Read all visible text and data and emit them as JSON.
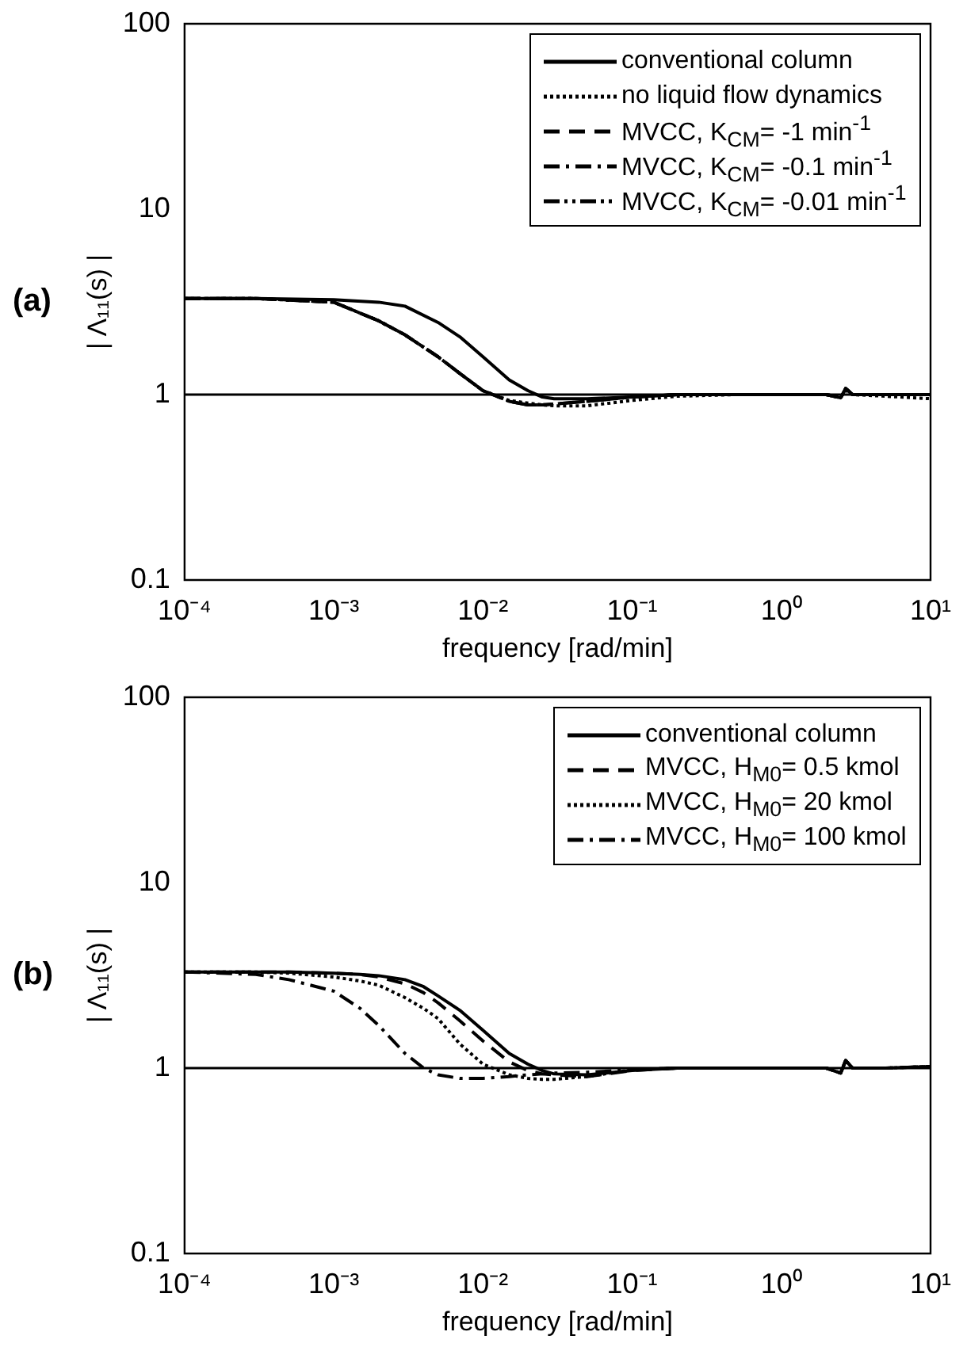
{
  "chart_data": [
    {
      "type": "line",
      "title": "(a)",
      "xlabel": "frequency [rad/min]",
      "ylabel": "| Λ₁₁(s) |",
      "log": "xy",
      "legend": "top right",
      "grid": false,
      "xlim": [
        0.0001,
        10
      ],
      "ylim": [
        0.1,
        100
      ],
      "xticks": [
        {
          "value": 0.0001,
          "label": "10⁻⁴"
        },
        {
          "value": 0.001,
          "label": "10⁻³"
        },
        {
          "value": 0.01,
          "label": "10⁻²"
        },
        {
          "value": 0.1,
          "label": "10⁻¹"
        },
        {
          "value": 1,
          "label": "10⁰"
        },
        {
          "value": 10,
          "label": "10¹"
        }
      ],
      "yticks": [
        0.1,
        1,
        10,
        100
      ],
      "ref_lines": [
        {
          "axis": "y",
          "value": 1,
          "color": "#000000"
        }
      ],
      "x": [
        0.0001,
        0.0003,
        0.001,
        0.002,
        0.003,
        0.005,
        0.007,
        0.01,
        0.015,
        0.02,
        0.025,
        0.03,
        0.05,
        0.1,
        0.2,
        0.5,
        1,
        2,
        2.5,
        2.7,
        3,
        5,
        10
      ],
      "series": [
        {
          "name": "conventional column",
          "color": "#000000",
          "line_style": "solid",
          "values": [
            3.3,
            3.3,
            3.25,
            3.15,
            3.0,
            2.45,
            2.05,
            1.6,
            1.2,
            1.05,
            0.97,
            0.95,
            0.95,
            0.97,
            1.0,
            1.0,
            1.0,
            1.0,
            0.96,
            1.08,
            1.0,
            1.0,
            1.0
          ]
        },
        {
          "name": "no liquid flow dynamics",
          "color": "#000000",
          "line_style": "dotted",
          "values": [
            3.3,
            3.3,
            3.15,
            2.5,
            2.1,
            1.6,
            1.3,
            1.05,
            0.93,
            0.9,
            0.88,
            0.87,
            0.87,
            0.93,
            0.98,
            1.0,
            1.0,
            1.0,
            0.97,
            1.05,
            1.0,
            0.98,
            0.95
          ]
        },
        {
          "name": "MVCC, K$_{CM}$= -1 min$^{-1}$",
          "color": "#000000",
          "line_style": "dashed",
          "values": [
            3.3,
            3.3,
            3.15,
            2.5,
            2.1,
            1.6,
            1.3,
            1.05,
            0.92,
            0.88,
            0.88,
            0.89,
            0.92,
            0.97,
            1.0,
            1.0,
            1.0,
            1.0,
            0.96,
            1.08,
            1.0,
            1.0,
            1.0
          ]
        },
        {
          "name": "MVCC, K$_{CM}$= -0.1 min$^{-1}$",
          "color": "#000000",
          "line_style": "dashdot",
          "values": [
            3.3,
            3.3,
            3.15,
            2.5,
            2.1,
            1.6,
            1.3,
            1.05,
            0.92,
            0.88,
            0.88,
            0.89,
            0.92,
            0.97,
            1.0,
            1.0,
            1.0,
            1.0,
            0.96,
            1.08,
            1.0,
            1.0,
            1.0
          ]
        },
        {
          "name": "MVCC, K$_{CM}$= -0.01 min$^{-1}$",
          "color": "#000000",
          "line_style": "dashdotdot",
          "values": [
            3.3,
            3.3,
            3.15,
            2.5,
            2.1,
            1.6,
            1.3,
            1.05,
            0.92,
            0.88,
            0.88,
            0.89,
            0.92,
            0.97,
            1.0,
            1.0,
            1.0,
            1.0,
            0.96,
            1.08,
            1.0,
            1.0,
            1.0
          ]
        }
      ]
    },
    {
      "type": "line",
      "title": "(b)",
      "xlabel": "frequency [rad/min]",
      "ylabel": "| Λ₁₁(s) |",
      "log": "xy",
      "legend": "top right",
      "grid": false,
      "xlim": [
        0.0001,
        10
      ],
      "ylim": [
        0.1,
        100
      ],
      "xticks": [
        {
          "value": 0.0001,
          "label": "10⁻⁴"
        },
        {
          "value": 0.001,
          "label": "10⁻³"
        },
        {
          "value": 0.01,
          "label": "10⁻²"
        },
        {
          "value": 0.1,
          "label": "10⁻¹"
        },
        {
          "value": 1,
          "label": "10⁰"
        },
        {
          "value": 10,
          "label": "10¹"
        }
      ],
      "yticks": [
        0.1,
        1,
        10,
        100
      ],
      "ref_lines": [
        {
          "axis": "y",
          "value": 1,
          "color": "#000000"
        }
      ],
      "x": [
        0.0001,
        0.0003,
        0.0005,
        0.001,
        0.0015,
        0.002,
        0.003,
        0.004,
        0.005,
        0.007,
        0.01,
        0.015,
        0.02,
        0.025,
        0.03,
        0.05,
        0.1,
        0.2,
        0.5,
        1,
        2,
        2.5,
        2.7,
        3,
        5,
        10
      ],
      "series": [
        {
          "name": "conventional column",
          "color": "#000000",
          "line_style": "solid",
          "values": [
            3.3,
            3.3,
            3.3,
            3.25,
            3.2,
            3.15,
            3.0,
            2.75,
            2.45,
            2.05,
            1.6,
            1.2,
            1.05,
            0.97,
            0.93,
            0.92,
            0.97,
            1.0,
            1.0,
            1.0,
            1.0,
            0.94,
            1.1,
            1.0,
            1.0,
            1.02
          ]
        },
        {
          "name": "MVCC, H$_{M0}$= 0.5 kmol",
          "color": "#000000",
          "line_style": "dashed",
          "values": [
            3.3,
            3.3,
            3.3,
            3.25,
            3.2,
            3.1,
            2.85,
            2.55,
            2.25,
            1.8,
            1.4,
            1.08,
            0.97,
            0.93,
            0.92,
            0.9,
            0.97,
            1.0,
            1.0,
            1.0,
            1.0,
            0.94,
            1.1,
            1.0,
            1.0,
            1.02
          ]
        },
        {
          "name": "MVCC, H$_{M0}$= 20 kmol",
          "color": "#000000",
          "line_style": "dotted",
          "values": [
            3.3,
            3.3,
            3.25,
            3.1,
            2.95,
            2.8,
            2.4,
            2.1,
            1.85,
            1.35,
            1.05,
            0.92,
            0.88,
            0.87,
            0.87,
            0.9,
            0.98,
            1.0,
            1.0,
            1.0,
            1.0,
            0.94,
            1.1,
            1.0,
            1.0,
            1.02
          ]
        },
        {
          "name": "MVCC, H$_{M0}$= 100 kmol",
          "color": "#000000",
          "line_style": "dashdot",
          "values": [
            3.3,
            3.2,
            3.0,
            2.6,
            2.1,
            1.7,
            1.2,
            1.0,
            0.92,
            0.88,
            0.88,
            0.9,
            0.92,
            0.93,
            0.94,
            0.95,
            0.98,
            1.0,
            1.0,
            1.0,
            1.0,
            0.94,
            1.1,
            1.0,
            1.0,
            1.02
          ]
        }
      ]
    }
  ]
}
